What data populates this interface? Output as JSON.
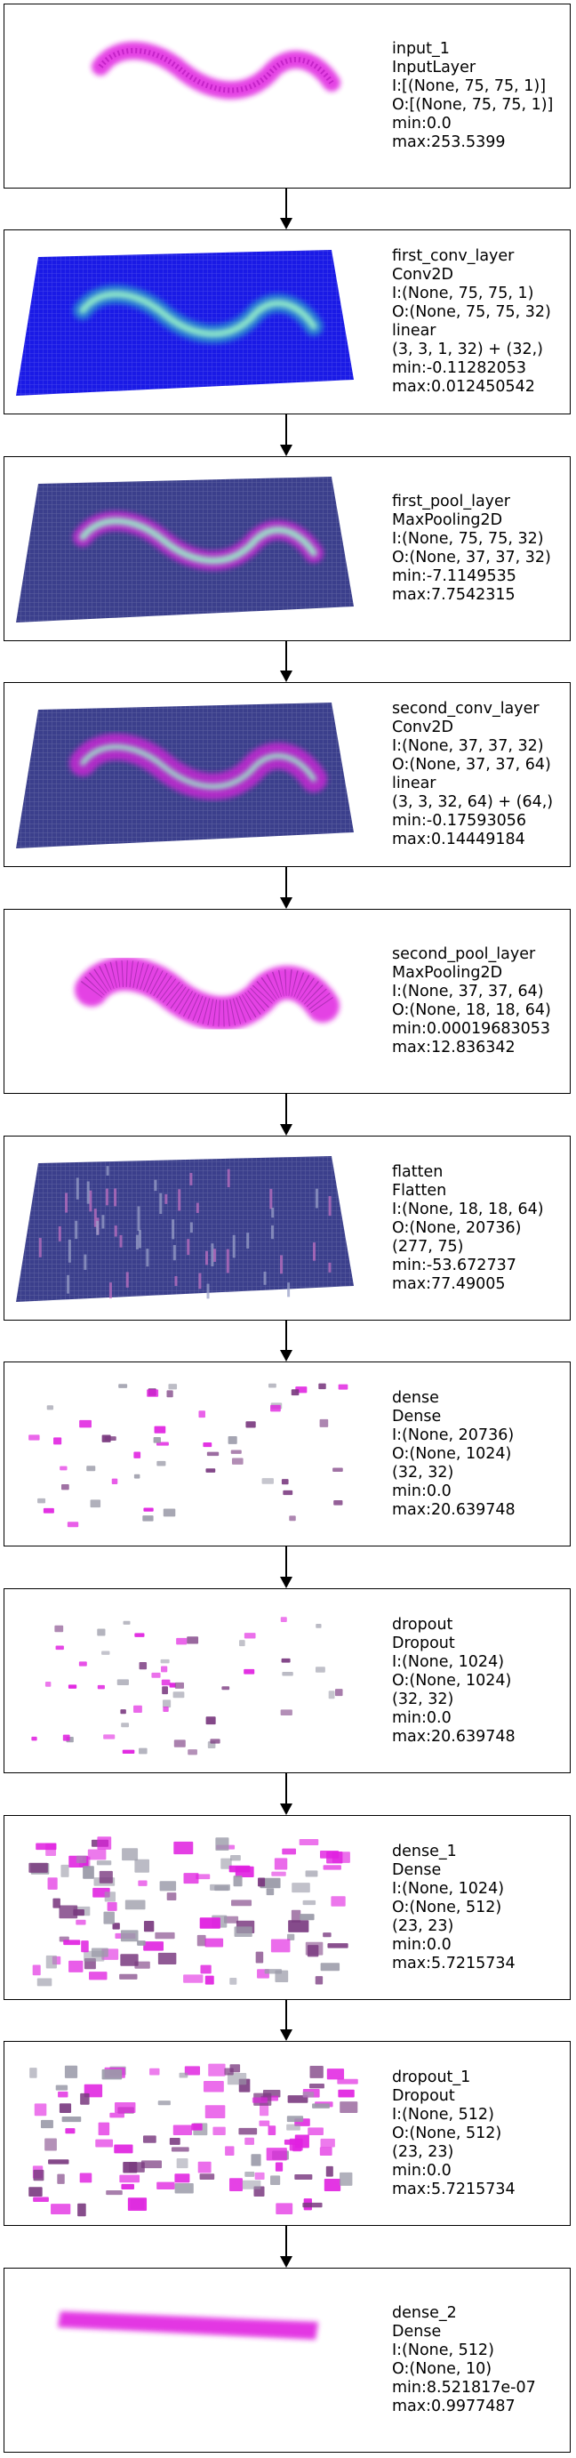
{
  "layers": [
    {
      "lines": [
        "input_1",
        "InputLayer",
        "I:[(None, 75, 75, 1)]",
        "O:[(None, 75, 75, 1)]",
        "min:0.0",
        "max:253.5399"
      ],
      "viz": "snake"
    },
    {
      "lines": [
        "first_conv_layer",
        "Conv2D",
        "I:(None, 75, 75, 1)",
        "O:(None, 75, 75, 32)",
        "linear",
        "(3, 3, 1, 32) + (32,)",
        "min:-0.11282053",
        "max:0.012450542"
      ],
      "viz": "conv1"
    },
    {
      "lines": [
        "first_pool_layer",
        "MaxPooling2D",
        "I:(None, 75, 75, 32)",
        "O:(None, 37, 37, 32)",
        "min:-7.1149535",
        "max:7.7542315"
      ],
      "viz": "pool1"
    },
    {
      "lines": [
        "second_conv_layer",
        "Conv2D",
        "I:(None, 37, 37, 32)",
        "O:(None, 37, 37, 64)",
        "linear",
        "(3, 3, 32, 64) + (64,)",
        "min:-0.17593056",
        "max:0.14449184"
      ],
      "viz": "conv2"
    },
    {
      "lines": [
        "second_pool_layer",
        "MaxPooling2D",
        "I:(None, 37, 37, 64)",
        "O:(None, 18, 18, 64)",
        "min:0.00019683053",
        "max:12.836342"
      ],
      "viz": "pool2"
    },
    {
      "lines": [
        "flatten",
        "Flatten",
        "I:(None, 18, 18, 64)",
        "O:(None, 20736)",
        "(277, 75)",
        "min:-53.672737",
        "max:77.49005"
      ],
      "viz": "flatten"
    },
    {
      "lines": [
        "dense",
        "Dense",
        "I:(None, 20736)",
        "O:(None, 1024)",
        "(32, 32)",
        "min:0.0",
        "max:20.639748"
      ],
      "viz": "sparse"
    },
    {
      "lines": [
        "dropout",
        "Dropout",
        "I:(None, 1024)",
        "O:(None, 1024)",
        "(32, 32)",
        "min:0.0",
        "max:20.639748"
      ],
      "viz": "sparse"
    },
    {
      "lines": [
        "dense_1",
        "Dense",
        "I:(None, 1024)",
        "O:(None, 512)",
        "(23, 23)",
        "min:0.0",
        "max:5.7215734"
      ],
      "viz": "dense23"
    },
    {
      "lines": [
        "dropout_1",
        "Dropout",
        "I:(None, 512)",
        "O:(None, 512)",
        "(23, 23)",
        "min:0.0",
        "max:5.7215734"
      ],
      "viz": "dense23"
    },
    {
      "lines": [
        "dense_2",
        "Dense",
        "I:(None, 512)",
        "O:(None, 10)",
        "min:8.521817e-07",
        "max:0.9977487"
      ],
      "viz": "bar"
    }
  ],
  "colors": {
    "magenta": "#e020e0",
    "blue": "#1a1ae6",
    "slate": "#3b3f8c",
    "cyan": "#9af5c8",
    "border": "#000000"
  }
}
